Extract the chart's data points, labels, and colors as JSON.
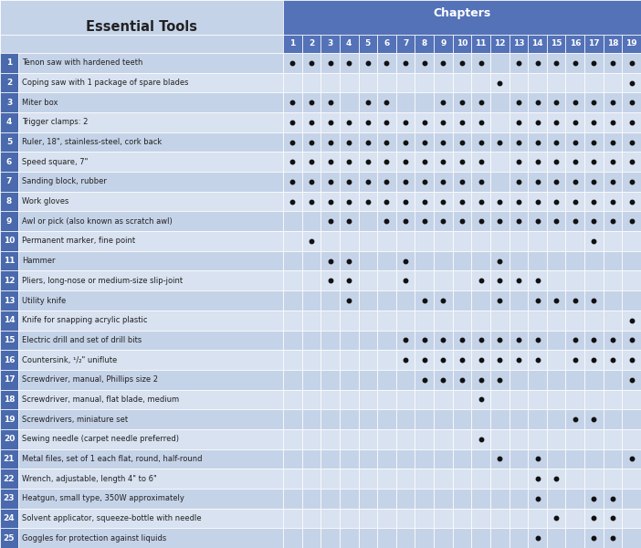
{
  "title": "Essential Tools",
  "chapters_label": "Chapters",
  "chapters": [
    1,
    2,
    3,
    4,
    5,
    6,
    7,
    8,
    9,
    10,
    11,
    12,
    13,
    14,
    15,
    16,
    17,
    18,
    19
  ],
  "tools": [
    "Tenon saw with hardened teeth",
    "Coping saw with 1 package of spare blades",
    "Miter box",
    "Trigger clamps: 2",
    "Ruler, 18\", stainless-steel, cork back",
    "Speed square, 7\"",
    "Sanding block, rubber",
    "Work gloves",
    "Awl or pick (also known as scratch awl)",
    "Permanent marker, fine point",
    "Hammer",
    "Pliers, long-nose or medium-size slip-joint",
    "Utility knife",
    "Knife for snapping acrylic plastic",
    "Electric drill and set of drill bits",
    "Countersink, ¹/₂\" uniflute",
    "Screwdriver, manual, Phillips size 2",
    "Screwdriver, manual, flat blade, medium",
    "Screwdrivers, miniature set",
    "Sewing needle (carpet needle preferred)",
    "Metal files, set of 1 each flat, round, half-round",
    "Wrench, adjustable, length 4\" to 6\"",
    "Heatgun, small type, 350W approximately",
    "Solvent applicator, squeeze-bottle with needle",
    "Goggles for protection against liquids"
  ],
  "dots": [
    [
      1,
      1,
      1,
      1,
      1,
      1,
      1,
      1,
      1,
      1,
      1,
      0,
      1,
      1,
      1,
      1,
      1,
      1,
      1
    ],
    [
      0,
      0,
      0,
      0,
      0,
      0,
      0,
      0,
      0,
      0,
      0,
      1,
      0,
      0,
      0,
      0,
      0,
      0,
      1
    ],
    [
      1,
      1,
      1,
      0,
      1,
      1,
      0,
      0,
      1,
      1,
      1,
      0,
      1,
      1,
      1,
      1,
      1,
      1,
      1
    ],
    [
      1,
      1,
      1,
      1,
      1,
      1,
      1,
      1,
      1,
      1,
      1,
      0,
      1,
      1,
      1,
      1,
      1,
      1,
      1
    ],
    [
      1,
      1,
      1,
      1,
      1,
      1,
      1,
      1,
      1,
      1,
      1,
      1,
      1,
      1,
      1,
      1,
      1,
      1,
      1
    ],
    [
      1,
      1,
      1,
      1,
      1,
      1,
      1,
      1,
      1,
      1,
      1,
      0,
      1,
      1,
      1,
      1,
      1,
      1,
      1
    ],
    [
      1,
      1,
      1,
      1,
      1,
      1,
      1,
      1,
      1,
      1,
      1,
      0,
      1,
      1,
      1,
      1,
      1,
      1,
      1
    ],
    [
      1,
      1,
      1,
      1,
      1,
      1,
      1,
      1,
      1,
      1,
      1,
      1,
      1,
      1,
      1,
      1,
      1,
      1,
      1
    ],
    [
      0,
      0,
      1,
      1,
      0,
      1,
      1,
      1,
      1,
      1,
      1,
      1,
      1,
      1,
      1,
      1,
      1,
      1,
      1
    ],
    [
      0,
      1,
      0,
      0,
      0,
      0,
      0,
      0,
      0,
      0,
      0,
      0,
      0,
      0,
      0,
      0,
      1,
      0,
      0
    ],
    [
      0,
      0,
      1,
      1,
      0,
      0,
      1,
      0,
      0,
      0,
      0,
      1,
      0,
      0,
      0,
      0,
      0,
      0,
      0
    ],
    [
      0,
      0,
      1,
      1,
      0,
      0,
      1,
      0,
      0,
      0,
      1,
      1,
      1,
      1,
      0,
      0,
      0,
      0,
      0
    ],
    [
      0,
      0,
      0,
      1,
      0,
      0,
      0,
      1,
      1,
      0,
      0,
      1,
      0,
      1,
      1,
      1,
      1,
      0,
      0
    ],
    [
      0,
      0,
      0,
      0,
      0,
      0,
      0,
      0,
      0,
      0,
      0,
      0,
      0,
      0,
      0,
      0,
      0,
      0,
      1
    ],
    [
      0,
      0,
      0,
      0,
      0,
      0,
      1,
      1,
      1,
      1,
      1,
      1,
      1,
      1,
      0,
      1,
      1,
      1,
      1
    ],
    [
      0,
      0,
      0,
      0,
      0,
      0,
      1,
      1,
      1,
      1,
      1,
      1,
      1,
      1,
      0,
      1,
      1,
      1,
      1
    ],
    [
      0,
      0,
      0,
      0,
      0,
      0,
      0,
      1,
      1,
      1,
      1,
      1,
      0,
      0,
      0,
      0,
      0,
      0,
      1
    ],
    [
      0,
      0,
      0,
      0,
      0,
      0,
      0,
      0,
      0,
      0,
      1,
      0,
      0,
      0,
      0,
      0,
      0,
      0,
      0
    ],
    [
      0,
      0,
      0,
      0,
      0,
      0,
      0,
      0,
      0,
      0,
      0,
      0,
      0,
      0,
      0,
      1,
      1,
      0,
      0
    ],
    [
      0,
      0,
      0,
      0,
      0,
      0,
      0,
      0,
      0,
      0,
      1,
      0,
      0,
      0,
      0,
      0,
      0,
      0,
      0
    ],
    [
      0,
      0,
      0,
      0,
      0,
      0,
      0,
      0,
      0,
      0,
      0,
      1,
      0,
      1,
      0,
      0,
      0,
      0,
      1
    ],
    [
      0,
      0,
      0,
      0,
      0,
      0,
      0,
      0,
      0,
      0,
      0,
      0,
      0,
      1,
      1,
      0,
      0,
      0,
      0
    ],
    [
      0,
      0,
      0,
      0,
      0,
      0,
      0,
      0,
      0,
      0,
      0,
      0,
      0,
      1,
      0,
      0,
      1,
      1,
      0
    ],
    [
      0,
      0,
      0,
      0,
      0,
      0,
      0,
      0,
      0,
      0,
      0,
      0,
      0,
      0,
      1,
      0,
      1,
      1,
      0
    ],
    [
      0,
      0,
      0,
      0,
      0,
      0,
      0,
      0,
      0,
      0,
      0,
      0,
      0,
      1,
      0,
      0,
      1,
      1,
      0
    ]
  ],
  "header_bg": "#5472b8",
  "header_bg2": "#4a6aad",
  "row_dark_bg": "#5472b8",
  "row_light_bg": "#c5d3e8",
  "row_lighter_bg": "#d8e2f0",
  "title_area_bg": "#c5d3e8",
  "num_col_bg": "#4a6aad",
  "dot_color": "#111111",
  "white": "#ffffff",
  "dark_text": "#222222",
  "light_text": "#ffffff"
}
